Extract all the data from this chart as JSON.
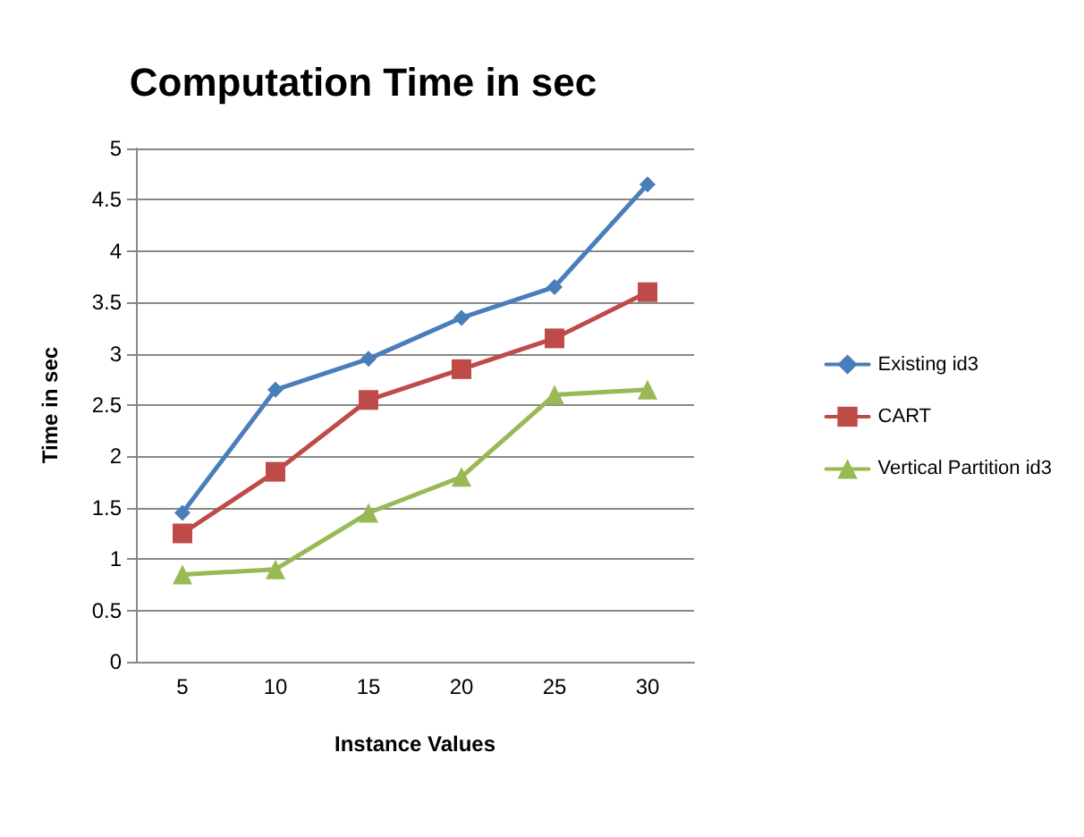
{
  "chart_data": {
    "type": "line",
    "title": "Computation Time in sec",
    "xlabel": "Instance Values",
    "ylabel": "Time in sec",
    "categories": [
      "5",
      "10",
      "15",
      "20",
      "25",
      "30"
    ],
    "series": [
      {
        "name": "Existing id3",
        "color": "#4a7ebb",
        "marker": "diamond",
        "values": [
          1.45,
          2.65,
          2.95,
          3.35,
          3.65,
          4.65
        ]
      },
      {
        "name": "CART",
        "color": "#be4b48",
        "marker": "square",
        "values": [
          1.25,
          1.85,
          2.55,
          2.85,
          3.15,
          3.6
        ]
      },
      {
        "name": "Vertical Partition id3",
        "color": "#98b954",
        "marker": "triangle",
        "values": [
          0.85,
          0.9,
          1.45,
          1.8,
          2.6,
          2.65
        ]
      }
    ],
    "ylim": [
      0,
      5
    ],
    "yticks": [
      0,
      0.5,
      1,
      1.5,
      2,
      2.5,
      3,
      3.5,
      4,
      4.5,
      5
    ],
    "grid": "y",
    "legend": "right"
  }
}
